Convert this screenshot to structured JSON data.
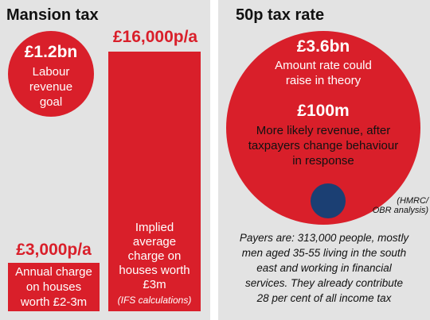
{
  "mansion": {
    "title": "Mansion tax",
    "circle": {
      "value": "£1.2bn",
      "label_1": "Labour",
      "label_2": "revenue",
      "label_3": "goal"
    },
    "implied_bar": {
      "value": "£16,000p/a",
      "label_1": "Implied",
      "label_2": "average",
      "label_3": "charge on",
      "label_4": "houses worth",
      "label_5": "£3m",
      "source": "(IFS calculations)"
    },
    "annual_bar": {
      "value": "£3,000p/a",
      "label_1": "Annual charge",
      "label_2": "on houses",
      "label_3": "worth £2-3m"
    }
  },
  "fifty_p": {
    "title": "50p tax rate",
    "big_circle": {
      "value": "£3.6bn",
      "label_1": "Amount rate could",
      "label_2": "raise in theory",
      "value_2": "£100m",
      "label_3": "More likely revenue, after",
      "label_4": "taxpayers change behaviour",
      "label_5": "in response"
    },
    "source_1": "(HMRC/",
    "source_2": "OBR analysis)",
    "note_1": "Payers are: 313,000 people, mostly",
    "note_2": "men aged 35-55 living in the south",
    "note_3": "east and working in financial",
    "note_4": "services. They already contribute",
    "note_5": "28 per cent of all income tax"
  },
  "colors": {
    "red": "#d91f2a",
    "navy": "#1b3f73",
    "panel_bg": "#e3e3e3"
  }
}
